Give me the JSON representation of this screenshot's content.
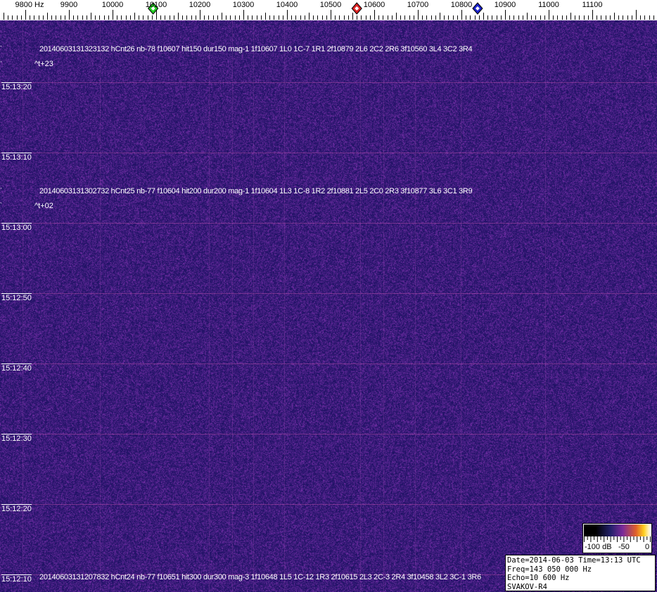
{
  "frequency_axis": {
    "unit": "Hz",
    "labels": [
      "9800 Hz",
      "9900",
      "10000",
      "10100",
      "10200",
      "10300",
      "10400",
      "10500",
      "10600",
      "10700",
      "10800",
      "10900",
      "11000",
      "11100"
    ],
    "values": [
      9800,
      9900,
      10000,
      10100,
      10200,
      10300,
      10400,
      10500,
      10600,
      10700,
      10800,
      10900,
      11000,
      11100
    ],
    "markers": [
      {
        "name": "green-marker",
        "freq": 10093,
        "color": "#22cc22"
      },
      {
        "name": "red-marker",
        "freq": 10560,
        "color": "#dd2222"
      },
      {
        "name": "blue-marker",
        "freq": 10837,
        "color": "#1a22cc"
      }
    ]
  },
  "time_labels": [
    "15:13:20",
    "15:13:10",
    "15:13:00",
    "15:12:50",
    "15:12:40",
    "15:12:30",
    "15:12:20",
    "15:12:10"
  ],
  "detections": [
    {
      "text": "20140603131323132 hCnt26 nb-78 f10607 hit150 dur150 mag-1 1f10607 1L0 1C-7 1R1 2f10879 2L6 2C2 2R6 3f10560 3L4 3C2 3R4",
      "offset": "^t+23"
    },
    {
      "text": "20140603131302732 hCnt25 nb-77 f10604 hit200 dur200 mag-1 1f10604 1L3 1C-8 1R2 2f10881 2L5 2C0 2R3 3f10877 3L6 3C1 3R9",
      "offset": "^t+02"
    },
    {
      "text": "20140603131207832 hCnt24 nb-77 f10651 hit300 dur300 mag-3 1f10648 1L5 1C-12 1R3 2f10615 2L3 2C-3 2R4 3f10458 3L2 3C-1 3R6"
    }
  ],
  "colorbar": {
    "labels": [
      "-100 dB",
      "-50",
      "0"
    ]
  },
  "info": {
    "date_time": "Date=2014-06-03 Time=13:13 UTC",
    "freq": "Freq=143 050 000 Hz",
    "echo": "Echo=10 600 Hz",
    "station": "SVAKOV-R4"
  },
  "colors": {
    "background": "#2c1c72",
    "noise_highlight": "#6a3aa8"
  }
}
